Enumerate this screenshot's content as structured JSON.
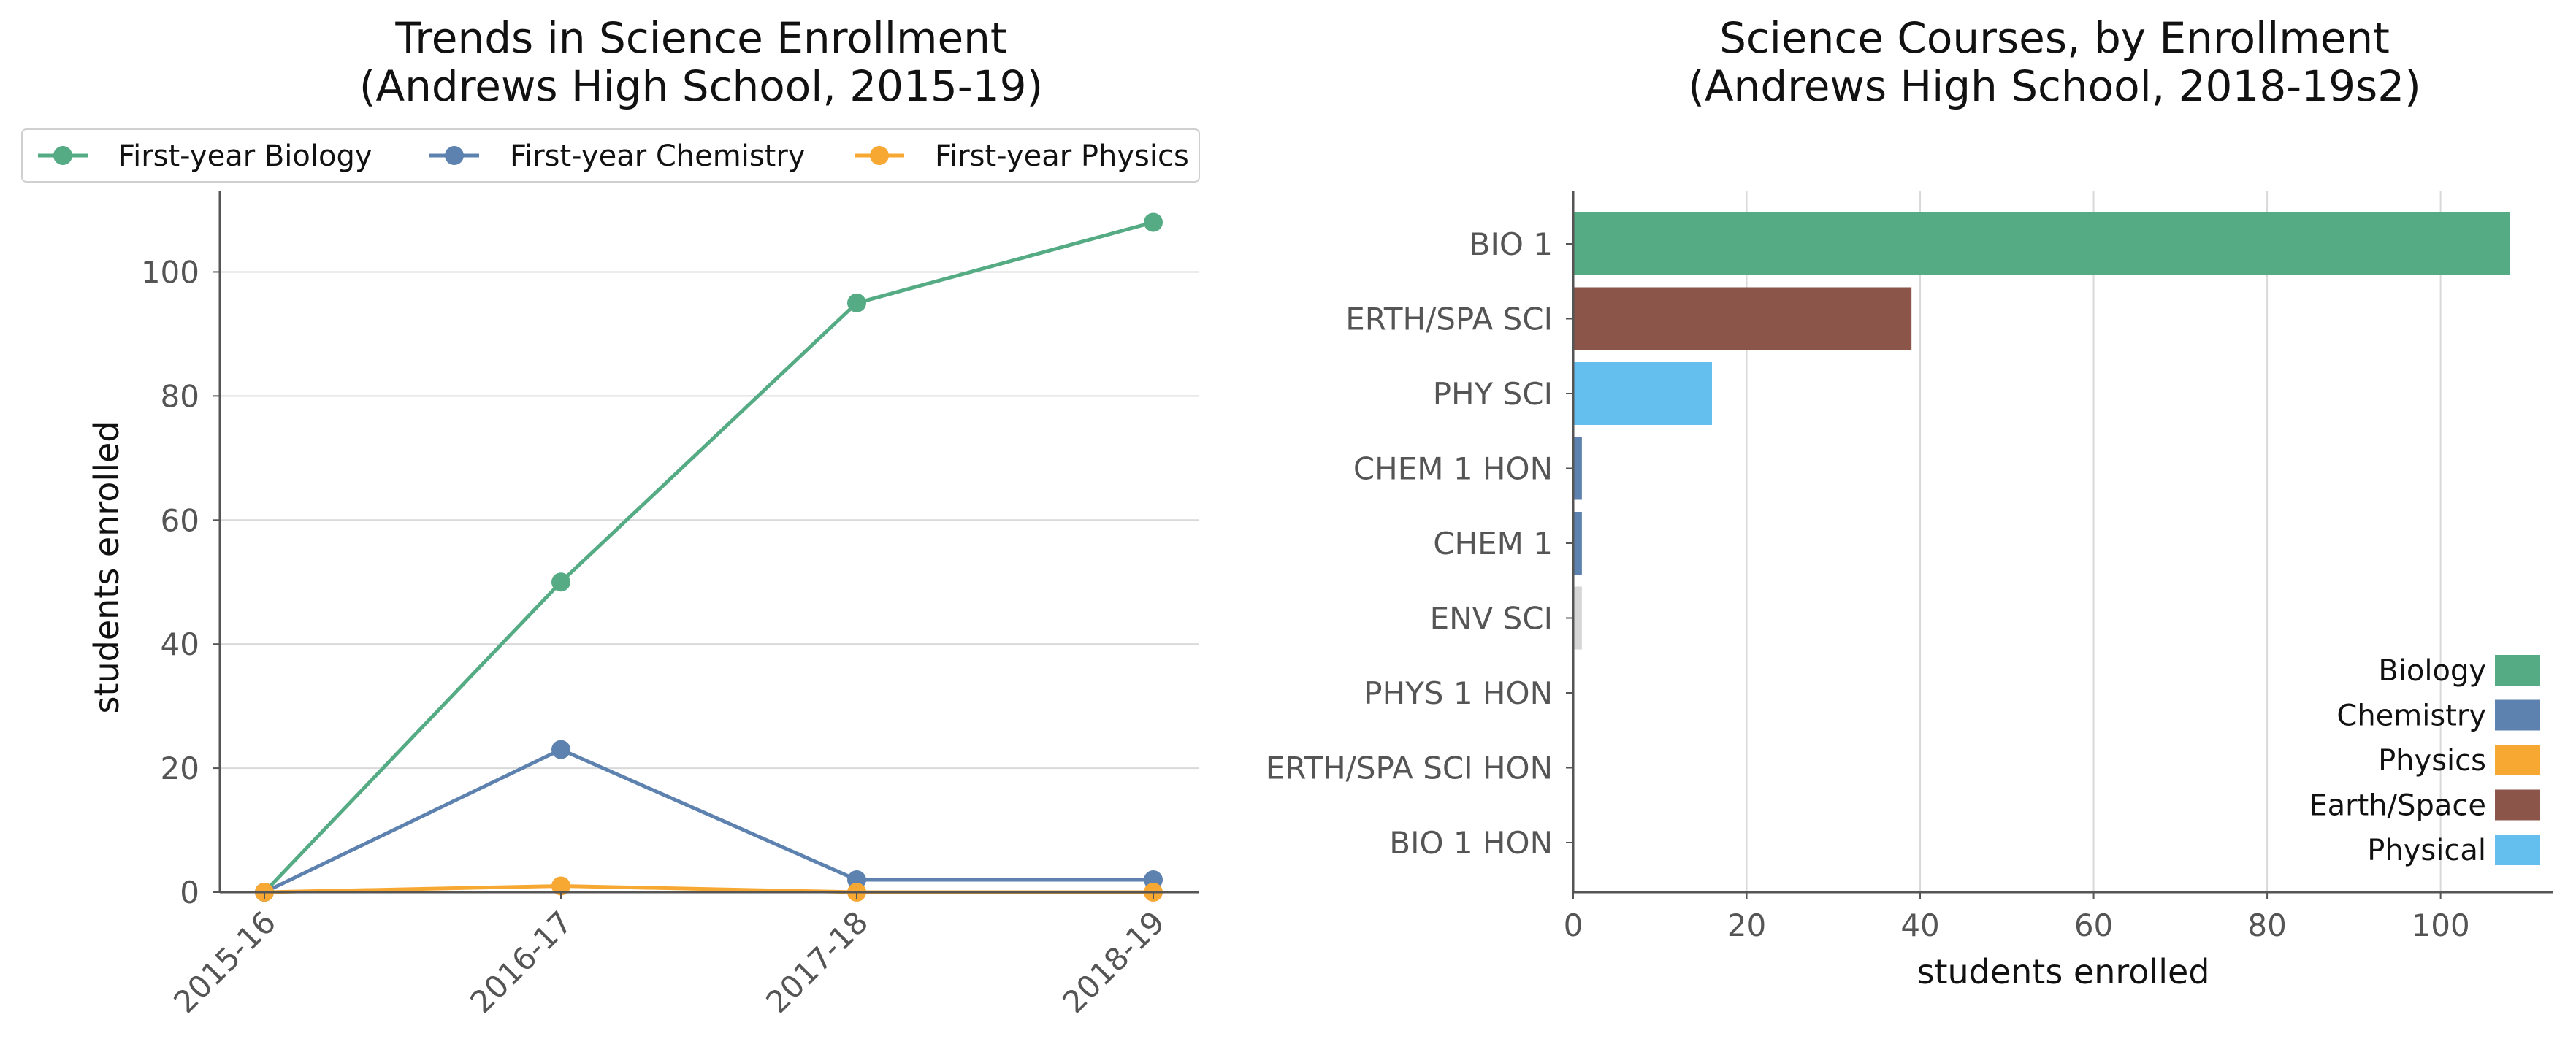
{
  "chart_data": [
    {
      "type": "line",
      "title": [
        "Trends in Science Enrollment",
        "(Andrews High School, 2015-19)"
      ],
      "xlabel": "",
      "ylabel": "students enrolled",
      "categories": [
        "2015-16",
        "2016-17",
        "2017-18",
        "2018-19"
      ],
      "ylim": [
        0,
        113
      ],
      "yticks": [
        0,
        20,
        40,
        60,
        80,
        100
      ],
      "grid": "horizontal",
      "legend_position": "top",
      "series": [
        {
          "name": "First-year Biology",
          "color": "#54ab84",
          "values": [
            0,
            50,
            95,
            108
          ]
        },
        {
          "name": "First-year Chemistry",
          "color": "#5e82af",
          "values": [
            0,
            23,
            2,
            2
          ]
        },
        {
          "name": "First-year Physics",
          "color": "#f7a833",
          "values": [
            0,
            1,
            0,
            0
          ]
        }
      ]
    },
    {
      "type": "bar",
      "orientation": "horizontal",
      "title": [
        "Science Courses, by Enrollment",
        "(Andrews High School, 2018-19s2)"
      ],
      "xlabel": "students enrolled",
      "ylabel": "",
      "xlim": [
        0,
        113
      ],
      "xticks": [
        0,
        20,
        40,
        60,
        80,
        100
      ],
      "grid": "vertical",
      "legend_position": "lower-right",
      "categories": [
        "BIO 1",
        "ERTH/SPA SCI",
        "PHY SCI",
        "CHEM 1 HON",
        "CHEM 1",
        "ENV SCI",
        "PHYS 1 HON",
        "ERTH/SPA SCI HON",
        "BIO 1 HON"
      ],
      "values": [
        108,
        39,
        16,
        1,
        1,
        1,
        0,
        0,
        0
      ],
      "bar_colors": [
        "#54ab84",
        "#8b5549",
        "#64bfee",
        "#5e82af",
        "#5e82af",
        "#d6d6d6",
        "#f7a833",
        "#8b5549",
        "#54ab84"
      ],
      "legend": [
        {
          "name": "Biology",
          "color": "#54ab84"
        },
        {
          "name": "Chemistry",
          "color": "#5e82af"
        },
        {
          "name": "Physics",
          "color": "#f7a833"
        },
        {
          "name": "Earth/Space",
          "color": "#8b5549"
        },
        {
          "name": "Physical",
          "color": "#64bfee"
        }
      ]
    }
  ]
}
